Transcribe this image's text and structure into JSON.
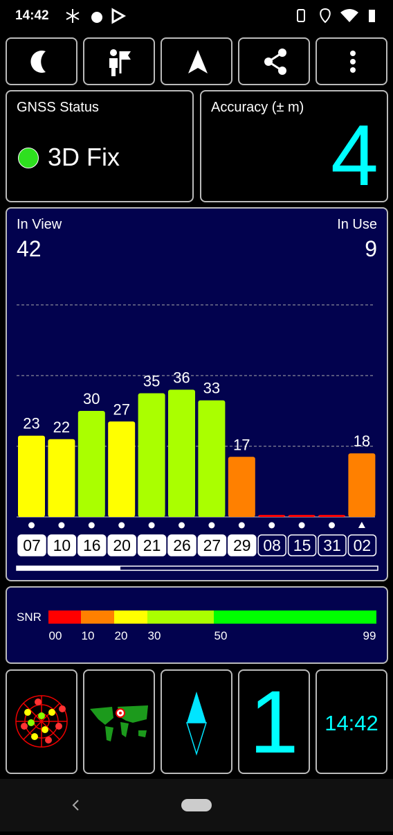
{
  "status_bar": {
    "time": "14:42"
  },
  "gnss_status": {
    "title": "GNSS Status",
    "fix": "3D Fix"
  },
  "accuracy": {
    "title": "Accuracy (± m)",
    "value": "4"
  },
  "satellites": {
    "in_view_label": "In View",
    "in_view": "42",
    "in_use_label": "In Use",
    "in_use": "9",
    "ylim": [
      0,
      60
    ],
    "gridlines": [
      20,
      40,
      60
    ],
    "bars": [
      {
        "id": "07",
        "snr": 23,
        "in_use": true,
        "marker": "dot"
      },
      {
        "id": "10",
        "snr": 22,
        "in_use": true,
        "marker": "dot"
      },
      {
        "id": "16",
        "snr": 30,
        "in_use": true,
        "marker": "dot"
      },
      {
        "id": "20",
        "snr": 27,
        "in_use": true,
        "marker": "dot"
      },
      {
        "id": "21",
        "snr": 35,
        "in_use": true,
        "marker": "dot"
      },
      {
        "id": "26",
        "snr": 36,
        "in_use": true,
        "marker": "dot"
      },
      {
        "id": "27",
        "snr": 33,
        "in_use": true,
        "marker": "dot"
      },
      {
        "id": "29",
        "snr": 17,
        "in_use": true,
        "marker": "dot"
      },
      {
        "id": "08",
        "snr": 0,
        "in_use": false,
        "marker": "dot"
      },
      {
        "id": "15",
        "snr": 0,
        "in_use": false,
        "marker": "dot"
      },
      {
        "id": "31",
        "snr": 0,
        "in_use": false,
        "marker": "dot"
      },
      {
        "id": "02",
        "snr": 18,
        "in_use": false,
        "marker": "triangle"
      }
    ]
  },
  "snr_legend": {
    "label": "SNR",
    "ticks": [
      {
        "value": 0,
        "label": "00",
        "color": "#ff0000"
      },
      {
        "value": 10,
        "label": "10",
        "color": "#ff8000"
      },
      {
        "value": 20,
        "label": "20",
        "color": "#ffff00"
      },
      {
        "value": 30,
        "label": "30",
        "color": "#aaff00"
      },
      {
        "value": 50,
        "label": "50",
        "color": "#00ff00"
      },
      {
        "value": 99,
        "label": "99"
      }
    ]
  },
  "bottom_tiles": {
    "used_count": "1",
    "clock": "14:42"
  }
}
